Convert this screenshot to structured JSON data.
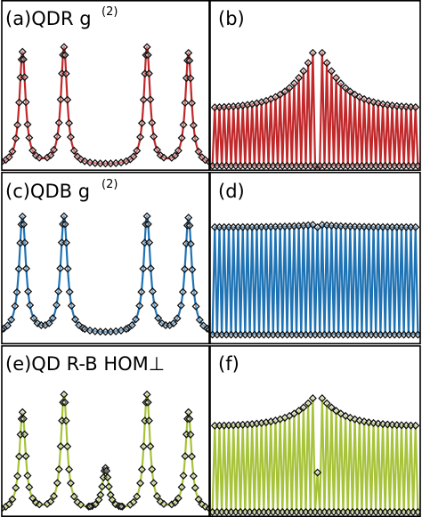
{
  "chart_data": [
    {
      "id": "a",
      "type": "line",
      "label_main": "(a)QDR g",
      "label_sup": "(2)",
      "xlabel": "",
      "ylabel": "",
      "grid": false,
      "color": "#c0282a",
      "ylim": [
        0,
        1.15
      ],
      "peaks": [
        {
          "x": 0.1,
          "height": 0.98
        },
        {
          "x": 0.3,
          "height": 1.02
        },
        {
          "x": 0.5,
          "height": 0.0
        },
        {
          "x": 0.7,
          "height": 1.02
        },
        {
          "x": 0.9,
          "height": 0.97
        }
      ],
      "peak_width": 0.018,
      "baseline": 0.02
    },
    {
      "id": "b",
      "type": "line",
      "label_main": "(b)",
      "label_sup": "",
      "xlabel": "",
      "ylabel": "",
      "grid": false,
      "color": "#c0282a",
      "ylim": [
        0,
        1.15
      ],
      "oscillation": {
        "n_peaks": 44,
        "center_index": 22,
        "center_height": 0.0,
        "far_height": 0.52,
        "near_height": 1.0,
        "decay": 5.0,
        "trough": 0.02
      }
    },
    {
      "id": "c",
      "type": "line",
      "label_main": "(c)QDB g",
      "label_sup": "(2)",
      "xlabel": "",
      "ylabel": "",
      "grid": false,
      "color": "#1f73b4",
      "ylim": [
        0,
        1.15
      ],
      "peaks": [
        {
          "x": 0.1,
          "height": 1.0
        },
        {
          "x": 0.3,
          "height": 1.0
        },
        {
          "x": 0.5,
          "height": 0.0
        },
        {
          "x": 0.7,
          "height": 1.0
        },
        {
          "x": 0.9,
          "height": 0.99
        }
      ],
      "peak_width": 0.02,
      "baseline": 0.06
    },
    {
      "id": "d",
      "type": "line",
      "label_main": "(d)",
      "label_sup": "",
      "xlabel": "",
      "ylabel": "",
      "grid": false,
      "color": "#1f73b4",
      "ylim": [
        0,
        1.15
      ],
      "oscillation": {
        "n_peaks": 44,
        "center_index": 22,
        "center_height": 0.98,
        "far_height": 0.98,
        "near_height": 1.0,
        "decay": 5.0,
        "trough": 0.06
      }
    },
    {
      "id": "e",
      "type": "line",
      "label_main": "(e)QD R-B HOM⊥",
      "label_sup": "",
      "xlabel": "",
      "ylabel": "",
      "grid": false,
      "color": "#a6c33a",
      "ylim": [
        0,
        1.15
      ],
      "peaks": [
        {
          "x": 0.1,
          "height": 0.85
        },
        {
          "x": 0.3,
          "height": 1.0
        },
        {
          "x": 0.5,
          "height": 0.36
        },
        {
          "x": 0.7,
          "height": 1.0
        },
        {
          "x": 0.9,
          "height": 0.85
        }
      ],
      "peak_width": 0.018,
      "baseline": 0.02
    },
    {
      "id": "f",
      "type": "line",
      "label_main": "(f)",
      "label_sup": "",
      "xlabel": "",
      "ylabel": "",
      "grid": false,
      "color": "#a6c33a",
      "ylim": [
        0,
        1.15
      ],
      "oscillation": {
        "n_peaks": 44,
        "center_index": 22,
        "center_height": 0.36,
        "far_height": 0.76,
        "near_height": 1.0,
        "decay": 5.0,
        "trough": 0.02
      }
    }
  ]
}
